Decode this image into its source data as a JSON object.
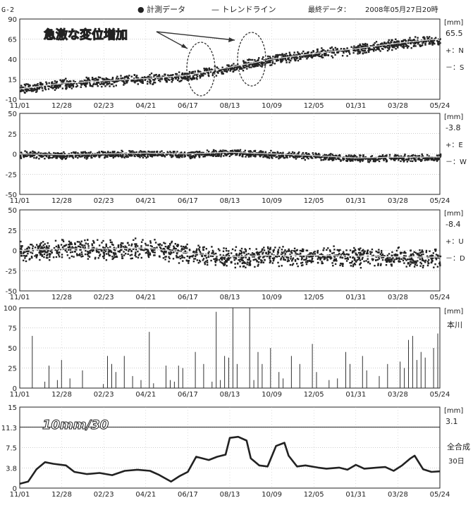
{
  "header": {
    "station": "G-2",
    "legend_measured": "● 計測データ",
    "legend_trend": "— トレンドライン",
    "last_data_label": "最終データ：",
    "last_data_value": "2008年05月27日20時"
  },
  "annotation": {
    "text": "急激な変位増加"
  },
  "x_ticks": [
    "11/01",
    "12/28",
    "02/23",
    "04/21",
    "06/17",
    "08/13",
    "10/09",
    "12/05",
    "01/31",
    "03/28",
    "05/24"
  ],
  "panels": [
    {
      "id": "ns",
      "y_ticks": [
        "90",
        "65",
        "40",
        "15",
        "-10"
      ],
      "unit": "[mm]",
      "value": "65.5",
      "plus": "+：N",
      "minus": "－：S"
    },
    {
      "id": "ew",
      "y_ticks": [
        "50",
        "25",
        "0",
        "-25",
        "-50"
      ],
      "unit": "[mm]",
      "value": "-3.8",
      "plus": "+：E",
      "minus": "－：W"
    },
    {
      "id": "ud",
      "y_ticks": [
        "50",
        "25",
        "0",
        "-25",
        "-50"
      ],
      "unit": "[mm]",
      "value": "-8.4",
      "plus": "+：U",
      "minus": "－：D"
    },
    {
      "id": "rain",
      "y_ticks": [
        "100",
        "75",
        "50",
        "25",
        "0"
      ],
      "unit": "[mm]",
      "station_name": "本川"
    },
    {
      "id": "total",
      "y_ticks": [
        "15",
        "11.3",
        "7.5",
        "3.8",
        "0"
      ],
      "unit": "[mm]",
      "value": "3.1",
      "label1": "全合成",
      "label2": "30日",
      "overlay": "10mm/30"
    }
  ],
  "chart_data": [
    {
      "type": "scatter",
      "name": "north-south",
      "x": [
        "11/01",
        "12/28",
        "02/23",
        "04/21",
        "06/17",
        "08/13",
        "10/09",
        "12/05",
        "01/31",
        "03/28",
        "05/24"
      ],
      "trend": [
        3,
        10,
        13,
        16,
        20,
        30,
        40,
        47,
        53,
        60,
        65.5
      ],
      "spread": 7,
      "ylim": [
        -10,
        90
      ],
      "last_value": 65.5
    },
    {
      "type": "scatter",
      "name": "east-west",
      "x": [
        "11/01",
        "12/28",
        "02/23",
        "04/21",
        "06/17",
        "08/13",
        "10/09",
        "12/05",
        "01/31",
        "03/28",
        "05/24"
      ],
      "trend": [
        0,
        -1,
        0,
        1,
        0,
        2,
        0,
        -2,
        -5,
        -4,
        -3.8
      ],
      "spread": 5,
      "ylim": [
        -50,
        50
      ],
      "last_value": -3.8
    },
    {
      "type": "scatter",
      "name": "up-down",
      "x": [
        "11/01",
        "12/28",
        "02/23",
        "04/21",
        "06/17",
        "08/13",
        "10/09",
        "12/05",
        "01/31",
        "03/28",
        "05/24"
      ],
      "trend": [
        0,
        2,
        2,
        3,
        -3,
        -8,
        -6,
        -6,
        -7,
        -8,
        -8.4
      ],
      "spread": 14,
      "ylim": [
        -50,
        50
      ],
      "last_value": -8.4
    },
    {
      "type": "bar",
      "name": "rainfall",
      "ylim": [
        0,
        100
      ],
      "bars": [
        [
          0.03,
          65
        ],
        [
          0.06,
          8
        ],
        [
          0.07,
          28
        ],
        [
          0.09,
          10
        ],
        [
          0.1,
          35
        ],
        [
          0.12,
          12
        ],
        [
          0.15,
          22
        ],
        [
          0.2,
          5
        ],
        [
          0.21,
          40
        ],
        [
          0.22,
          30
        ],
        [
          0.23,
          20
        ],
        [
          0.25,
          40
        ],
        [
          0.27,
          15
        ],
        [
          0.29,
          10
        ],
        [
          0.31,
          70
        ],
        [
          0.32,
          6
        ],
        [
          0.35,
          28
        ],
        [
          0.36,
          10
        ],
        [
          0.37,
          8
        ],
        [
          0.38,
          28
        ],
        [
          0.39,
          25
        ],
        [
          0.42,
          45
        ],
        [
          0.44,
          30
        ],
        [
          0.46,
          8
        ],
        [
          0.47,
          95
        ],
        [
          0.48,
          10
        ],
        [
          0.49,
          40
        ],
        [
          0.5,
          38
        ],
        [
          0.51,
          100
        ],
        [
          0.52,
          30
        ],
        [
          0.55,
          100
        ],
        [
          0.56,
          10
        ],
        [
          0.57,
          45
        ],
        [
          0.58,
          30
        ],
        [
          0.6,
          50
        ],
        [
          0.62,
          20
        ],
        [
          0.63,
          12
        ],
        [
          0.65,
          40
        ],
        [
          0.67,
          30
        ],
        [
          0.7,
          55
        ],
        [
          0.71,
          20
        ],
        [
          0.74,
          10
        ],
        [
          0.76,
          12
        ],
        [
          0.78,
          45
        ],
        [
          0.79,
          30
        ],
        [
          0.82,
          40
        ],
        [
          0.83,
          22
        ],
        [
          0.86,
          15
        ],
        [
          0.88,
          30
        ],
        [
          0.91,
          33
        ],
        [
          0.92,
          25
        ],
        [
          0.93,
          60
        ],
        [
          0.94,
          65
        ],
        [
          0.95,
          35
        ],
        [
          0.96,
          45
        ],
        [
          0.97,
          38
        ],
        [
          0.99,
          50
        ],
        [
          1.0,
          68
        ]
      ]
    },
    {
      "type": "line",
      "name": "total-30day",
      "ylim": [
        0,
        15
      ],
      "points": [
        [
          0,
          0.8
        ],
        [
          0.02,
          1.2
        ],
        [
          0.04,
          3.5
        ],
        [
          0.06,
          4.8
        ],
        [
          0.08,
          4.5
        ],
        [
          0.11,
          4.2
        ],
        [
          0.13,
          3
        ],
        [
          0.16,
          2.6
        ],
        [
          0.19,
          2.8
        ],
        [
          0.22,
          2.4
        ],
        [
          0.25,
          3.2
        ],
        [
          0.28,
          3.4
        ],
        [
          0.31,
          3.2
        ],
        [
          0.33,
          2.5
        ],
        [
          0.36,
          1.2
        ],
        [
          0.38,
          2.2
        ],
        [
          0.4,
          3
        ],
        [
          0.42,
          5.8
        ],
        [
          0.45,
          5.2
        ],
        [
          0.47,
          5.8
        ],
        [
          0.49,
          6.2
        ],
        [
          0.5,
          9.3
        ],
        [
          0.52,
          9.5
        ],
        [
          0.54,
          8.8
        ],
        [
          0.55,
          5.5
        ],
        [
          0.57,
          4.2
        ],
        [
          0.59,
          4
        ],
        [
          0.61,
          7.8
        ],
        [
          0.63,
          8.4
        ],
        [
          0.64,
          6
        ],
        [
          0.66,
          4
        ],
        [
          0.68,
          4.2
        ],
        [
          0.71,
          3.8
        ],
        [
          0.73,
          3.6
        ],
        [
          0.76,
          3.8
        ],
        [
          0.78,
          3.4
        ],
        [
          0.8,
          4.3
        ],
        [
          0.82,
          3.6
        ],
        [
          0.85,
          3.8
        ],
        [
          0.87,
          3.9
        ],
        [
          0.89,
          3.2
        ],
        [
          0.91,
          4.2
        ],
        [
          0.93,
          5.5
        ],
        [
          0.94,
          6
        ],
        [
          0.96,
          3.5
        ],
        [
          0.98,
          3
        ],
        [
          1.0,
          3.1
        ]
      ]
    }
  ]
}
